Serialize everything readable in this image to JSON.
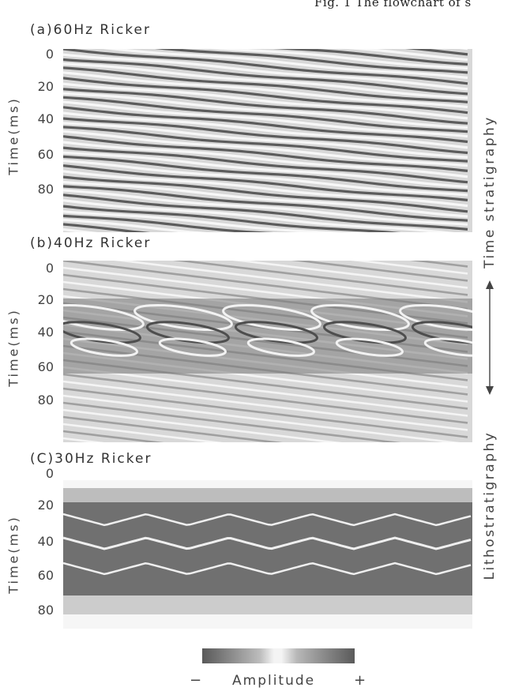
{
  "header_text": "Fig. 1   The flowchart of s",
  "panels": [
    {
      "title": "(a)60Hz Ricker",
      "ylabel": "Time(ms)",
      "yticks": [
        "0",
        "20",
        "40",
        "60",
        "80"
      ]
    },
    {
      "title": "(b)40Hz Ricker",
      "ylabel": "Time(ms)",
      "yticks": [
        "0",
        "20",
        "40",
        "60",
        "80"
      ]
    },
    {
      "title": "(C)30Hz Ricker",
      "ylabel": "Time(ms)",
      "yticks": [
        "0",
        "20",
        "40",
        "60",
        "80"
      ]
    }
  ],
  "right_labels": {
    "top": "Time stratigraphy",
    "bottom": "Lithostratigraphy"
  },
  "colorbar": {
    "minus": "−",
    "label": "Amplitude",
    "plus": "+"
  }
}
